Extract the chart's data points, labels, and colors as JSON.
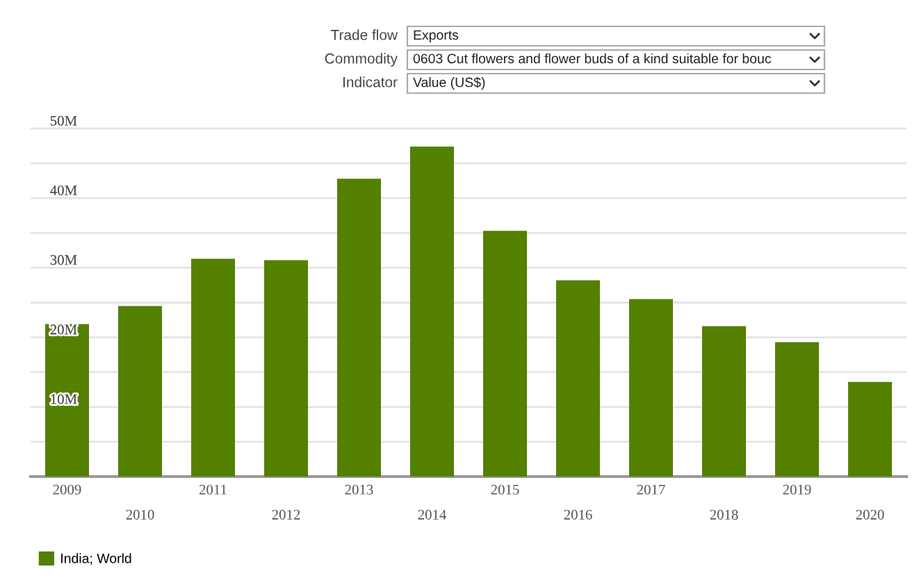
{
  "chart_data": {
    "type": "bar",
    "categories": [
      "2009",
      "2010",
      "2011",
      "2012",
      "2013",
      "2014",
      "2015",
      "2016",
      "2017",
      "2018",
      "2019",
      "2020"
    ],
    "series": [
      {
        "name": "India; World",
        "color": "#548000",
        "values": [
          21.9,
          24.5,
          31.3,
          31.1,
          42.8,
          47.4,
          35.3,
          28.2,
          25.5,
          21.6,
          19.3,
          13.6
        ]
      }
    ],
    "ylim": [
      0,
      50.5
    ],
    "yticks": [
      {
        "value": 0,
        "label": null
      },
      {
        "value": 5,
        "label": null
      },
      {
        "value": 10,
        "label": "10M"
      },
      {
        "value": 15,
        "label": null
      },
      {
        "value": 20,
        "label": "20M"
      },
      {
        "value": 25,
        "label": null
      },
      {
        "value": 30,
        "label": "30M"
      },
      {
        "value": 35,
        "label": null
      },
      {
        "value": 40,
        "label": "40M"
      },
      {
        "value": 45,
        "label": null
      },
      {
        "value": 50,
        "label": "50M"
      }
    ],
    "grid": "y",
    "legend": "bottom left",
    "annotations": [
      "Trade flow",
      "Exports",
      "Commodity",
      "0603 Cut flowers and flower buds of a kind suitable for bouc",
      "Indicator",
      "Value (US$)"
    ]
  }
}
